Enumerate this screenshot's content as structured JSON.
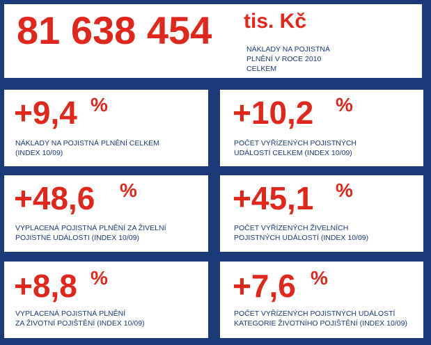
{
  "colors": {
    "background": "#1b3a78",
    "accent": "#e1261c",
    "text": "#1b3a78"
  },
  "header": {
    "value": "81 638 454",
    "unit": "tis. Kč",
    "caption_lines": [
      "NÁKLADY NA POJISTNÁ",
      "PLNĚNÍ V ROCE 2010",
      "CELKEM"
    ]
  },
  "stats": [
    {
      "value": "+9,4",
      "unit": "%",
      "caption_lines": [
        "NÁKLADY NA POJISTNÁ PLNĚNÍ CELKEM",
        "(INDEX 10/09)"
      ]
    },
    {
      "value": "+10,2",
      "unit": "%",
      "caption_lines": [
        "POČET VYŘÍZENÝCH POJISTNÝCH",
        "UDÁLOSTÍ CELKEM (INDEX 10/09)"
      ]
    },
    {
      "value": "+48,6",
      "unit": "%",
      "caption_lines": [
        "VYPLACENÁ POJISTNÁ PLNĚNÍ ZA ŽIVELNÍ",
        "POJISTNÉ UDÁLOSTI (INDEX 10/09)"
      ]
    },
    {
      "value": "+45,1",
      "unit": "%",
      "caption_lines": [
        "POČET VYŘÍZENÝCH ŽIVELNÍCH",
        "POJISTNÝCH UDÁLOSTÍ (INDEX 10/09)"
      ]
    },
    {
      "value": "+8,8",
      "unit": "%",
      "caption_lines": [
        "VYPLACENÁ POJISTNÁ PLNĚNÍ",
        "ZA ŽIVOTNÍ POJIŠTĚNÍ (INDEX 10/09)"
      ]
    },
    {
      "value": "+7,6",
      "unit": "%",
      "caption_lines": [
        "POČET VYŘÍZENÝCH POJISTNÝCH UDÁLOSTÍ",
        "KATEGORIE ŽIVOTNÍHO POJIŠTĚNÍ (INDEX 10/09)"
      ]
    }
  ]
}
